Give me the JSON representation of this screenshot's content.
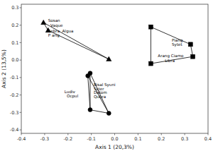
{
  "chart_data": {
    "type": "scatter",
    "xlabel": "Axis 1 (20,3%)",
    "ylabel": "Axis 2 (13,5%)",
    "xlim": [
      -0.4,
      0.4
    ],
    "ylim": [
      -0.42,
      0.32
    ],
    "xticks": [
      -0.4,
      -0.3,
      -0.2,
      -0.1,
      {
        "value": 0.0,
        "label": "0.0"
      },
      0.1,
      0.2,
      0.3,
      0.4
    ],
    "yticks": [
      -0.4,
      -0.3,
      -0.2,
      -0.1,
      {
        "value": 0.0,
        "label": "0.0"
      },
      0.1,
      0.2,
      0.3
    ],
    "series": [
      {
        "type": "line",
        "color": "black",
        "x": [
          -0.305,
          -0.285,
          null,
          -0.305,
          -0.025,
          null,
          -0.285,
          -0.025
        ],
        "values": [
          0.215,
          0.17,
          null,
          0.215,
          0.005,
          null,
          0.17,
          0.005
        ]
      },
      {
        "type": "line",
        "color": "black",
        "x": [
          0.155,
          0.325,
          null,
          0.325,
          0.335,
          null,
          0.335,
          0.155,
          null,
          0.155,
          0.155
        ],
        "values": [
          0.19,
          0.09,
          null,
          0.09,
          0.02,
          null,
          0.02,
          -0.02,
          null,
          -0.02,
          0.19
        ]
      },
      {
        "type": "line",
        "color": "black",
        "x": [
          -0.105,
          -0.115,
          null,
          -0.115,
          -0.105,
          null,
          -0.105,
          -0.025,
          null,
          -0.025,
          -0.105,
          null,
          -0.105,
          -0.105,
          null,
          -0.115,
          -0.025
        ],
        "values": [
          -0.075,
          -0.09,
          null,
          -0.09,
          -0.285,
          null,
          -0.285,
          -0.305,
          null,
          -0.305,
          -0.075,
          null,
          -0.075,
          -0.285,
          null,
          -0.09,
          -0.305
        ]
      },
      {
        "type": "scatter",
        "marker": "triangle",
        "color": "black",
        "x": [
          -0.305,
          -0.285,
          -0.025
        ],
        "values": [
          0.215,
          0.17,
          0.005
        ]
      },
      {
        "type": "scatter",
        "marker": "square",
        "color": "black",
        "x": [
          0.155,
          0.325,
          0.335,
          0.155
        ],
        "values": [
          0.19,
          0.09,
          0.02,
          -0.02
        ]
      },
      {
        "type": "scatter",
        "marker": "circle",
        "color": "black",
        "x": [
          -0.105,
          -0.115,
          -0.105,
          -0.025
        ],
        "values": [
          -0.075,
          -0.09,
          -0.285,
          -0.305
        ]
      }
    ],
    "annotations": [
      {
        "text": "Sosan",
        "x": -0.285,
        "y": 0.215
      },
      {
        "text": "Vaque",
        "x": -0.275,
        "y": 0.185
      },
      {
        "text": "Sebra",
        "x": -0.285,
        "y": 0.155
      },
      {
        "text": "Algua",
        "x": -0.225,
        "y": 0.155
      },
      {
        "text": "P arig",
        "x": -0.285,
        "y": 0.127
      },
      {
        "text": "Piang",
        "x": 0.245,
        "y": 0.1
      },
      {
        "text": "Sytet",
        "x": 0.245,
        "y": 0.075
      },
      {
        "text": "Arang Ciamo",
        "x": 0.185,
        "y": 0.01
      },
      {
        "text": "Libra",
        "x": 0.215,
        "y": -0.018
      },
      {
        "text": "Bisal Syuni",
        "x": -0.09,
        "y": -0.155
      },
      {
        "text": "Scter",
        "x": -0.09,
        "y": -0.178
      },
      {
        "text": "Datom",
        "x": -0.09,
        "y": -0.2
      },
      {
        "text": "Qubra",
        "x": -0.09,
        "y": -0.223
      },
      {
        "text": "Ludiv",
        "x": -0.215,
        "y": -0.195
      },
      {
        "text": "Ocpul",
        "x": -0.205,
        "y": -0.218
      }
    ]
  }
}
